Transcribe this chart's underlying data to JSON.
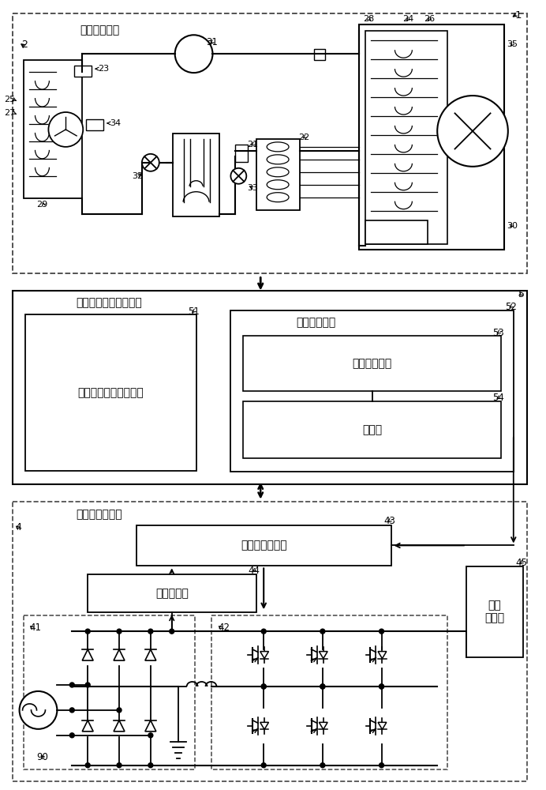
{
  "bg_color": "#ffffff",
  "lc": "#000000",
  "fig_width": 6.92,
  "fig_height": 10.0,
  "labels": {
    "sys_label": "冷冻循环系统",
    "ctrl_label": "冷冻循环系统控制装置",
    "inv_label": "逃变器驱动装置",
    "box51": "冷冻循环系统控制设备",
    "box52": "除霜控制设备",
    "box53": "除霜判断设备",
    "box54": "控制部",
    "box43": "逃变器控制设备",
    "box44": "电压检测器",
    "box45": "电流\n检测器"
  }
}
